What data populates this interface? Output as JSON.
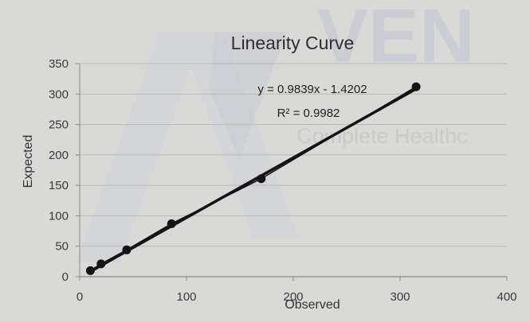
{
  "watermark": {
    "brand": "VEN",
    "tagline": "Complete Healthc",
    "logo_icon": "stylized-a-logo-icon"
  },
  "chart_data": {
    "type": "scatter",
    "title": "Linearity Curve",
    "xlabel": "Observed",
    "ylabel": "Expected",
    "xlim": [
      0,
      400
    ],
    "ylim": [
      0,
      350
    ],
    "x_ticks": [
      "0",
      "100",
      "200",
      "300",
      "400"
    ],
    "y_ticks": [
      "0",
      "50",
      "100",
      "150",
      "200",
      "250",
      "300",
      "350"
    ],
    "grid": true,
    "points": [
      {
        "x": 10,
        "y": 10
      },
      {
        "x": 20,
        "y": 21
      },
      {
        "x": 44,
        "y": 44
      },
      {
        "x": 86,
        "y": 87
      },
      {
        "x": 170,
        "y": 161
      },
      {
        "x": 315,
        "y": 312
      }
    ],
    "trendline": {
      "slope": 0.9839,
      "intercept": -1.4202,
      "equation": "y = 0.9839x - 1.4202",
      "r2_label": "R² = 0.9982"
    },
    "colors": {
      "marker": "#141414",
      "trendline": "#141414",
      "grid": "#b9b9b6",
      "axis": "#8a8a8a"
    }
  }
}
